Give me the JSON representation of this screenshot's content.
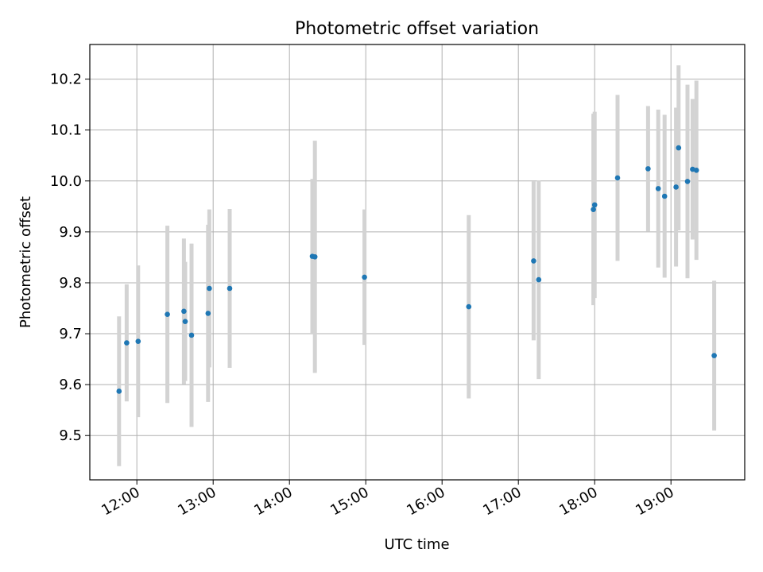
{
  "chart_data": {
    "type": "scatter",
    "title": "Photometric offset variation",
    "xlabel": "UTC time",
    "ylabel": "Photometric offset",
    "xlim": [
      "11:23",
      "19:58"
    ],
    "ylim": [
      9.413,
      10.268
    ],
    "grid": true,
    "x_tick_labels": [
      "12:00",
      "13:00",
      "14:00",
      "15:00",
      "16:00",
      "17:00",
      "18:00",
      "19:00"
    ],
    "y_tick_labels": [
      "9.5",
      "9.6",
      "9.7",
      "9.8",
      "9.9",
      "10.0",
      "10.1",
      "10.2"
    ],
    "marker_color": "#1f77b4",
    "errorbar_color": "#d3d3d3",
    "points": [
      {
        "x": "11:46",
        "y": 9.587,
        "err": 0.147
      },
      {
        "x": "11:52",
        "y": 9.682,
        "err": 0.115
      },
      {
        "x": "12:01",
        "y": 9.685,
        "err": 0.149
      },
      {
        "x": "12:24",
        "y": 9.738,
        "err": 0.174
      },
      {
        "x": "12:37",
        "y": 9.744,
        "err": 0.143
      },
      {
        "x": "12:38",
        "y": 9.724,
        "err": 0.117
      },
      {
        "x": "12:43",
        "y": 9.697,
        "err": 0.18
      },
      {
        "x": "12:56",
        "y": 9.74,
        "err": 0.174
      },
      {
        "x": "12:57",
        "y": 9.789,
        "err": 0.155
      },
      {
        "x": "13:13",
        "y": 9.789,
        "err": 0.156
      },
      {
        "x": "14:18",
        "y": 9.852,
        "err": 0.152
      },
      {
        "x": "14:20",
        "y": 9.851,
        "err": 0.228
      },
      {
        "x": "14:59",
        "y": 9.811,
        "err": 0.133
      },
      {
        "x": "16:21",
        "y": 9.753,
        "err": 0.18
      },
      {
        "x": "17:12",
        "y": 9.843,
        "err": 0.156
      },
      {
        "x": "17:16",
        "y": 9.806,
        "err": 0.195
      },
      {
        "x": "17:59",
        "y": 9.944,
        "err": 0.188
      },
      {
        "x": "18:00",
        "y": 9.953,
        "err": 0.183
      },
      {
        "x": "18:18",
        "y": 10.006,
        "err": 0.163
      },
      {
        "x": "18:42",
        "y": 10.024,
        "err": 0.123
      },
      {
        "x": "18:50",
        "y": 9.985,
        "err": 0.155
      },
      {
        "x": "18:55",
        "y": 9.97,
        "err": 0.16
      },
      {
        "x": "19:04",
        "y": 9.988,
        "err": 0.156
      },
      {
        "x": "19:06",
        "y": 10.065,
        "err": 0.162
      },
      {
        "x": "19:13",
        "y": 9.999,
        "err": 0.19
      },
      {
        "x": "19:17",
        "y": 10.023,
        "err": 0.138
      },
      {
        "x": "19:20",
        "y": 10.021,
        "err": 0.176
      },
      {
        "x": "19:34",
        "y": 9.657,
        "err": 0.147
      }
    ]
  }
}
